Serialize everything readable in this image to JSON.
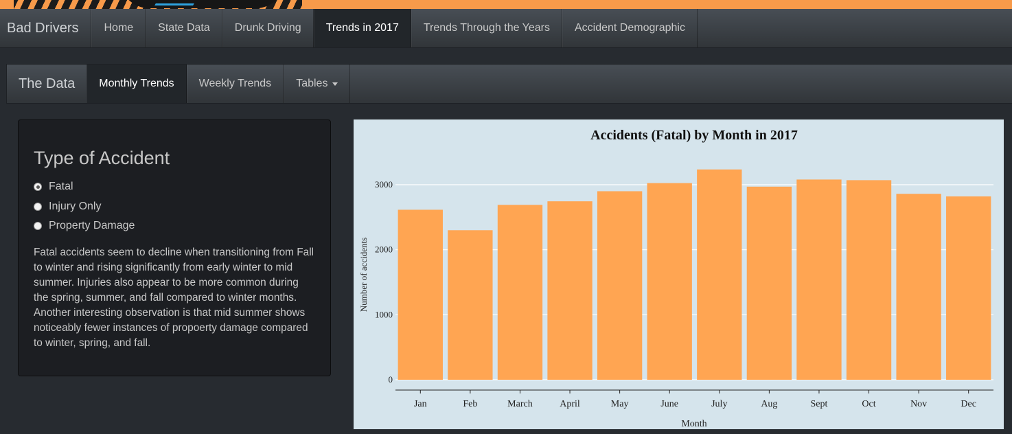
{
  "navbar": {
    "brand": "Bad Drivers",
    "items": [
      {
        "label": "Home"
      },
      {
        "label": "State Data"
      },
      {
        "label": "Drunk Driving"
      },
      {
        "label": "Trends in 2017",
        "active": true
      },
      {
        "label": "Trends Through the Years"
      },
      {
        "label": "Accident Demographic"
      }
    ]
  },
  "subnav": {
    "brand": "The Data",
    "items": [
      {
        "label": "Monthly Trends",
        "active": true
      },
      {
        "label": "Weekly Trends"
      },
      {
        "label": "Tables",
        "dropdown": true
      }
    ]
  },
  "sidebar": {
    "title": "Type of Accident",
    "options": [
      {
        "label": "Fatal",
        "checked": true
      },
      {
        "label": "Injury Only",
        "checked": false
      },
      {
        "label": "Property Damage",
        "checked": false
      }
    ],
    "description": "Fatal accidents seem to decline when transitioning from Fall to winter and rising significantly from early winter to mid summer. Injuries also appear to be more common during the spring, summer, and fall compared to winter months. Another interesting observation is that mid summer shows noticeably fewer instances of propoerty damage compared to winter, spring, and fall."
  },
  "colors": {
    "bar": "#ffa552",
    "plot_background": "#d5e4ec",
    "page_background": "#272b30"
  },
  "chart_data": {
    "type": "bar",
    "title": "Accidents (Fatal) by Month in 2017",
    "xlabel": "Month",
    "ylabel": "Number of accidents",
    "categories": [
      "Jan",
      "Feb",
      "March",
      "April",
      "May",
      "June",
      "July",
      "Aug",
      "Sept",
      "Oct",
      "Nov",
      "Dec"
    ],
    "values": [
      2615,
      2300,
      2690,
      2745,
      2900,
      3025,
      3235,
      2970,
      3080,
      3070,
      2860,
      2820
    ],
    "yticks": [
      0,
      1000,
      2000,
      3000
    ],
    "ylim": [
      0,
      3400
    ],
    "grid": true,
    "legend": "none"
  }
}
